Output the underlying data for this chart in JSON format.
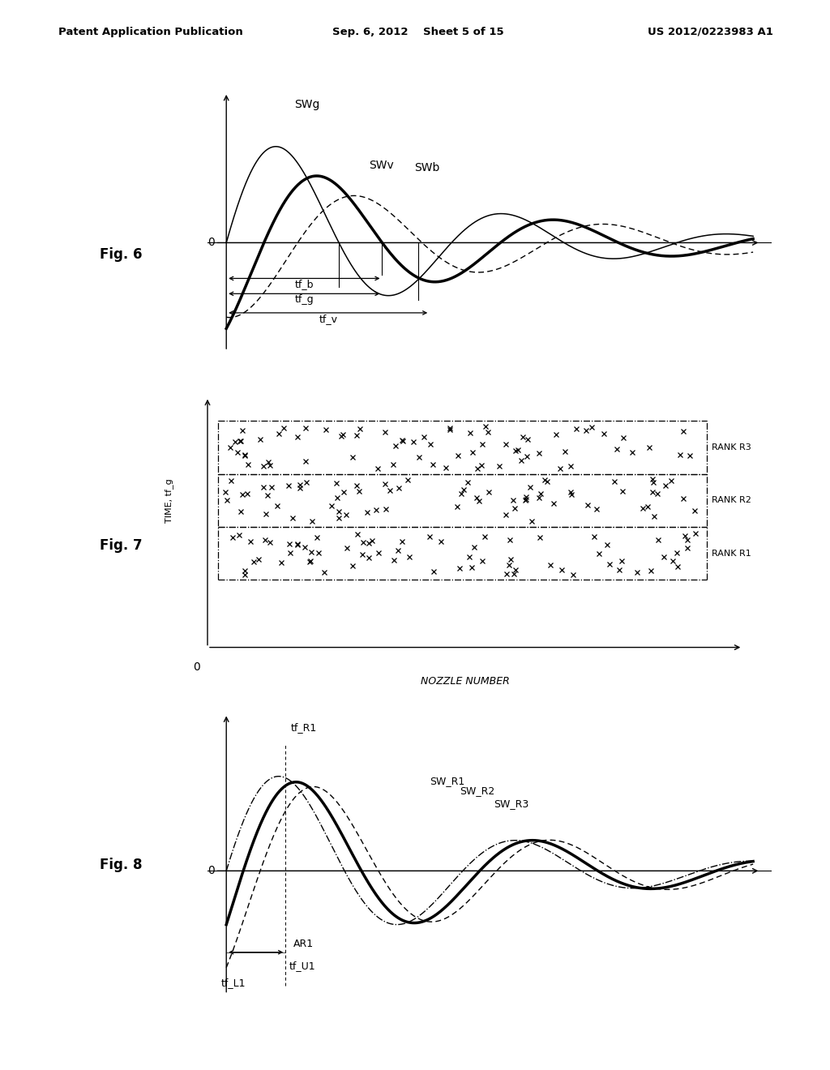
{
  "header_left": "Patent Application Publication",
  "header_mid": "Sep. 6, 2012    Sheet 5 of 15",
  "header_right": "US 2012/0223983 A1",
  "bg_color": "#ffffff",
  "text_color": "#000000",
  "fig6_label": "Fig. 6",
  "fig7_label": "Fig. 7",
  "fig8_label": "Fig. 8",
  "fig6_swg_label": "SWg",
  "fig6_swv_label": "SWv",
  "fig6_swb_label": "SWb",
  "fig6_tf_b": "tf_b",
  "fig6_tf_g": "tf_g",
  "fig6_tf_v": "tf_v",
  "fig7_ylabel": "TIME, tf_g",
  "fig7_xlabel": "NOZZLE NUMBER",
  "fig7_rank3": "RANK R3",
  "fig7_rank2": "RANK R2",
  "fig7_rank1": "RANK R1",
  "fig8_tfR1": "tf_R1",
  "fig8_SWR1": "SW_R1",
  "fig8_SWR2": "SW_R2",
  "fig8_SWR3": "SW_R3",
  "fig8_AR1": "AR1",
  "fig8_tfU1": "tf_U1",
  "fig8_tfL1": "tf_L1"
}
